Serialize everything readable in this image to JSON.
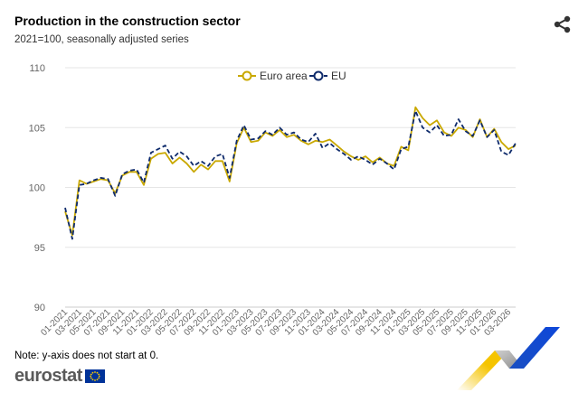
{
  "header": {
    "title": "Production in the construction sector",
    "subtitle": "2021=100, seasonally adjusted series"
  },
  "note": "Note: y-axis does not start at 0.",
  "logo": {
    "text": "eurostat"
  },
  "icons": {
    "share": "share-icon",
    "flag": "eu-flag-icon"
  },
  "colors": {
    "euro_area": "#c9a800",
    "eu": "#0e2a6b",
    "grid": "#e6e6e6"
  },
  "chart_data": {
    "type": "line",
    "ylim": [
      90,
      110
    ],
    "yticks": [
      "90",
      "95",
      "100",
      "105",
      "110"
    ],
    "legend_position": "top-center",
    "x_tick_labels": [
      "01-2021",
      "03-2021",
      "05-2021",
      "07-2021",
      "09-2021",
      "11-2021",
      "01-2022",
      "03-2022",
      "05-2022",
      "07-2022",
      "09-2022",
      "11-2022",
      "01-2023",
      "03-2023",
      "05-2023",
      "07-2023",
      "09-2023",
      "11-2023",
      "01-2024",
      "03-2024",
      "05-2024",
      "07-2024",
      "09-2024",
      "11-2024",
      "01-2025",
      "03-2025",
      "05-2025",
      "07-2025",
      "09-2025",
      "11-2025",
      "01-2026",
      "03-2026"
    ],
    "series": [
      {
        "name": "Euro area",
        "values": [
          98.0,
          96.0,
          100.6,
          100.3,
          100.5,
          100.7,
          100.6,
          99.5,
          101.0,
          101.3,
          101.3,
          100.2,
          102.4,
          102.8,
          102.9,
          102.0,
          102.5,
          102.0,
          101.3,
          101.9,
          101.5,
          102.2,
          102.2,
          100.5,
          103.7,
          105.0,
          103.8,
          103.9,
          104.6,
          104.3,
          104.8,
          104.2,
          104.4,
          103.9,
          103.6,
          103.9,
          103.8,
          104.0,
          103.5,
          103.0,
          102.6,
          102.3,
          102.6,
          102.1,
          102.5,
          102.0,
          101.8,
          103.4,
          103.1,
          106.7,
          105.8,
          105.2,
          105.6,
          104.6,
          104.3,
          105.0,
          104.8,
          104.2,
          105.7,
          104.2,
          104.9,
          103.8,
          103.2,
          103.5
        ]
      },
      {
        "name": "EU",
        "values": [
          98.3,
          95.7,
          100.2,
          100.3,
          100.6,
          100.8,
          100.7,
          99.3,
          101.1,
          101.4,
          101.5,
          100.4,
          102.9,
          103.2,
          103.5,
          102.4,
          103.0,
          102.6,
          101.8,
          102.2,
          101.8,
          102.6,
          102.8,
          100.8,
          103.9,
          105.2,
          104.0,
          104.1,
          104.7,
          104.4,
          105.0,
          104.4,
          104.6,
          104.0,
          103.8,
          104.5,
          103.3,
          103.7,
          103.2,
          102.8,
          102.3,
          102.6,
          102.3,
          101.9,
          102.4,
          102.0,
          101.5,
          103.2,
          103.4,
          106.4,
          105.0,
          104.6,
          105.2,
          104.3,
          104.4,
          105.7,
          104.7,
          104.3,
          105.6,
          104.2,
          104.8,
          103.0,
          102.7,
          103.7
        ]
      }
    ]
  }
}
